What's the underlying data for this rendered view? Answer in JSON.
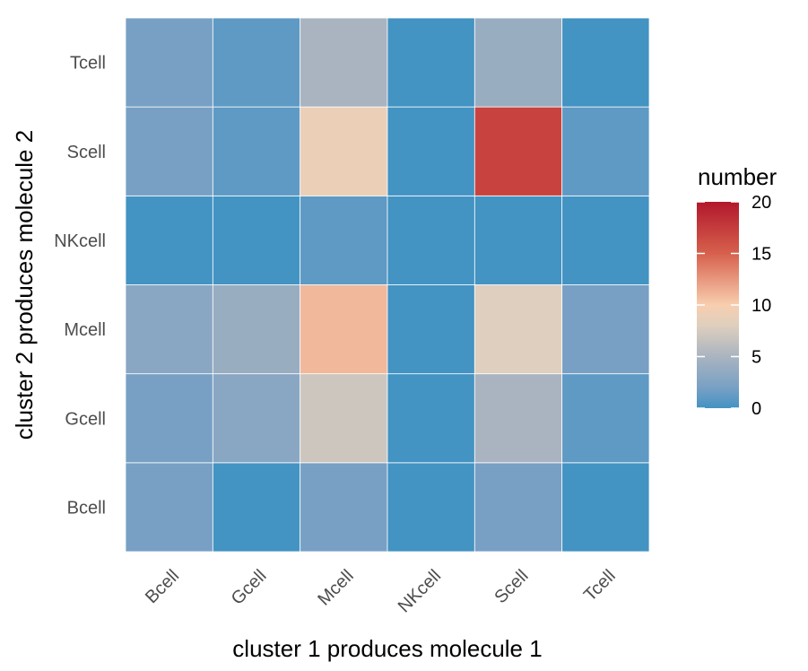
{
  "chart_data": {
    "type": "heatmap",
    "xlabel": "cluster 1 produces molecule 1",
    "ylabel": "cluster 2 produces molecule 2",
    "x_categories": [
      "Bcell",
      "Gcell",
      "Mcell",
      "NKcell",
      "Scell",
      "Tcell"
    ],
    "y_categories": [
      "Bcell",
      "Gcell",
      "Mcell",
      "NKcell",
      "Scell",
      "Tcell"
    ],
    "values": [
      [
        2,
        0,
        2,
        0,
        2,
        0
      ],
      [
        2,
        3,
        7,
        0,
        5,
        1
      ],
      [
        3,
        4,
        11,
        0,
        8,
        2
      ],
      [
        0,
        0,
        1,
        0,
        0,
        0
      ],
      [
        2,
        1,
        9,
        0,
        17,
        1
      ],
      [
        2,
        1,
        5,
        0,
        4,
        0
      ]
    ],
    "legend": {
      "title": "number",
      "range": [
        0,
        20
      ],
      "ticks": [
        0,
        5,
        10,
        15,
        20
      ],
      "placement": "right"
    },
    "colors": {
      "low": "#4393c3",
      "mid": "#fddbc7",
      "high": "#b2182b",
      "grid": "#ffffff"
    }
  }
}
